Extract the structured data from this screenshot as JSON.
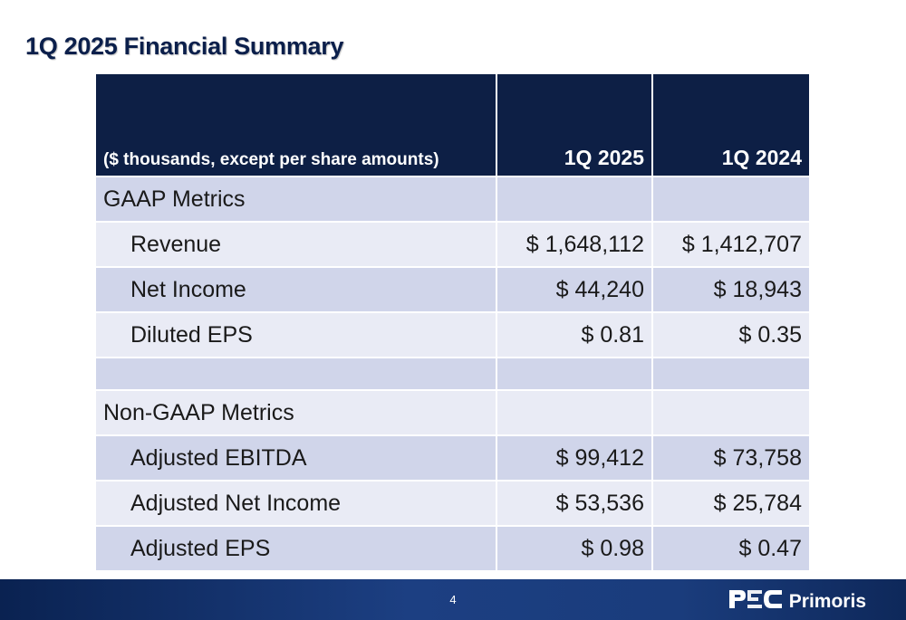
{
  "title": "1Q 2025 Financial Summary",
  "table": {
    "header": {
      "label": "($ thousands, except per share amounts)",
      "col1": "1Q 2025",
      "col2": "1Q 2024"
    },
    "rows": [
      {
        "label": "GAAP Metrics",
        "col1": "",
        "col2": ""
      },
      {
        "label": "Revenue",
        "col1": "$ 1,648,112",
        "col2": "$ 1,412,707"
      },
      {
        "label": "Net Income",
        "col1": "$ 44,240",
        "col2": "$ 18,943"
      },
      {
        "label": "Diluted EPS",
        "col1": "$ 0.81",
        "col2": "$ 0.35"
      },
      {
        "label": "",
        "col1": "",
        "col2": ""
      },
      {
        "label": "Non-GAAP Metrics",
        "col1": "",
        "col2": ""
      },
      {
        "label": "Adjusted EBITDA",
        "col1": "$ 99,412",
        "col2": "$ 73,758"
      },
      {
        "label": "Adjusted Net Income",
        "col1": "$ 53,536",
        "col2": "$ 25,784"
      },
      {
        "label": "Adjusted EPS",
        "col1": "$ 0.98",
        "col2": "$ 0.47"
      }
    ]
  },
  "footer": {
    "page_number": "4",
    "logo_text": "Primoris",
    "logo_icon": "psc-logo-icon"
  },
  "colors": {
    "header_bg": "#0d1f45",
    "row_dark": "#d0d5ea",
    "row_light": "#e9ebf5",
    "title": "#0b1f4b",
    "footer_bar": "#1c3f82"
  }
}
